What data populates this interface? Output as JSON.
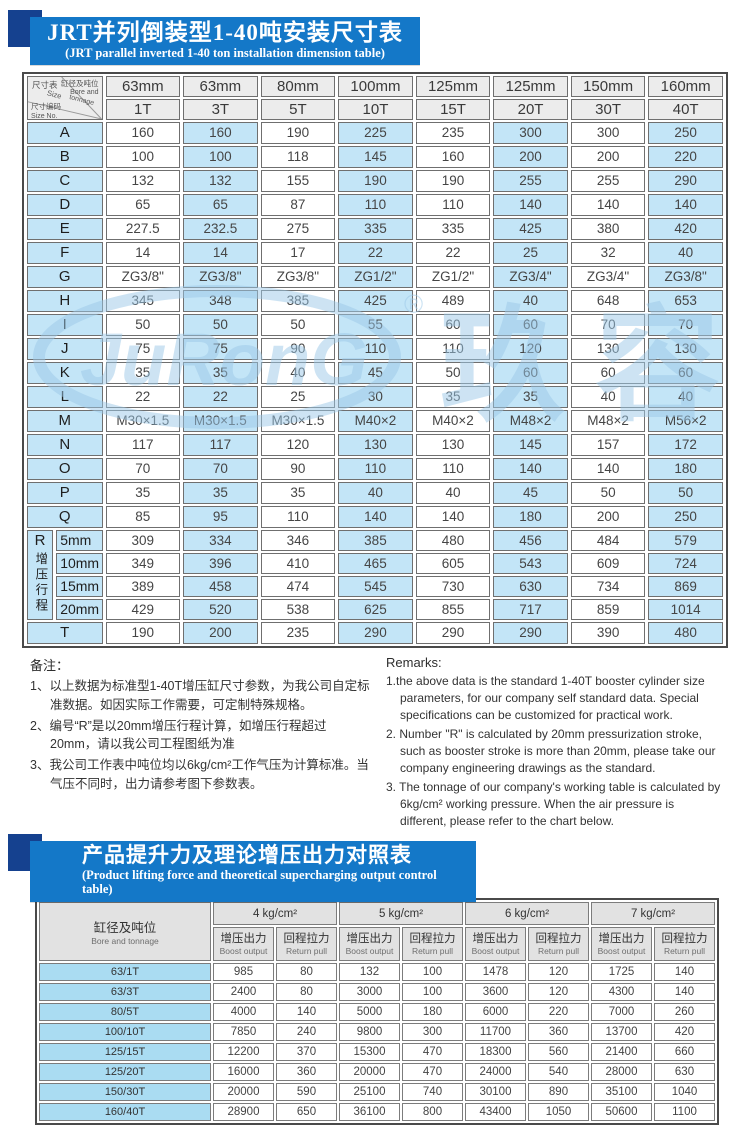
{
  "colors": {
    "banner_blue": "#1478c8",
    "dark_blue": "#15418f",
    "cell_blue": "#c3e5f7",
    "label_blue": "#aadcf2",
    "header_grey": "#ececec",
    "watermark_blue": "#9cc9e8"
  },
  "section1": {
    "title_cn": "JRT并列倒装型1-40吨安装尺寸表",
    "title_en": "(JRT parallel inverted 1-40 ton installation dimension table)",
    "corner": {
      "size_cn": "尺寸表",
      "size_en": "Size",
      "bore_cn": "缸径及吨位",
      "bore_en1": "Bore and",
      "bore_en2": "tonnage",
      "no_cn": "尺寸编码",
      "no_en": "Size No."
    },
    "bores": [
      "63mm",
      "63mm",
      "80mm",
      "100mm",
      "125mm",
      "125mm",
      "150mm",
      "160mm"
    ],
    "tons": [
      "1T",
      "3T",
      "5T",
      "10T",
      "15T",
      "20T",
      "30T",
      "40T"
    ],
    "rows": [
      {
        "label": "A",
        "values": [
          "160",
          "160",
          "190",
          "225",
          "235",
          "300",
          "300",
          "250"
        ]
      },
      {
        "label": "B",
        "values": [
          "100",
          "100",
          "118",
          "145",
          "160",
          "200",
          "200",
          "220"
        ]
      },
      {
        "label": "C",
        "values": [
          "132",
          "132",
          "155",
          "190",
          "190",
          "255",
          "255",
          "290"
        ]
      },
      {
        "label": "D",
        "values": [
          "65",
          "65",
          "87",
          "110",
          "110",
          "140",
          "140",
          "140"
        ]
      },
      {
        "label": "E",
        "values": [
          "227.5",
          "232.5",
          "275",
          "335",
          "335",
          "425",
          "380",
          "420"
        ]
      },
      {
        "label": "F",
        "values": [
          "14",
          "14",
          "17",
          "22",
          "22",
          "25",
          "32",
          "40"
        ]
      },
      {
        "label": "G",
        "values": [
          "ZG3/8\"",
          "ZG3/8\"",
          "ZG3/8\"",
          "ZG1/2\"",
          "ZG1/2\"",
          "ZG3/4\"",
          "ZG3/4\"",
          "ZG3/8\""
        ]
      },
      {
        "label": "H",
        "values": [
          "345",
          "348",
          "385",
          "425",
          "489",
          "40",
          "648",
          "653"
        ]
      },
      {
        "label": "I",
        "values": [
          "50",
          "50",
          "50",
          "55",
          "60",
          "60",
          "70",
          "70"
        ]
      },
      {
        "label": "J",
        "values": [
          "75",
          "75",
          "90",
          "110",
          "110",
          "120",
          "130",
          "130"
        ]
      },
      {
        "label": "K",
        "values": [
          "35",
          "35",
          "40",
          "45",
          "50",
          "60",
          "60",
          "60"
        ]
      },
      {
        "label": "L",
        "values": [
          "22",
          "22",
          "25",
          "30",
          "35",
          "35",
          "40",
          "40"
        ]
      },
      {
        "label": "M",
        "values": [
          "M30×1.5",
          "M30×1.5",
          "M30×1.5",
          "M40×2",
          "M40×2",
          "M48×2",
          "M48×2",
          "M56×2"
        ]
      },
      {
        "label": "N",
        "values": [
          "117",
          "117",
          "120",
          "130",
          "130",
          "145",
          "157",
          "172"
        ]
      },
      {
        "label": "O",
        "values": [
          "70",
          "70",
          "90",
          "110",
          "110",
          "140",
          "140",
          "180"
        ]
      },
      {
        "label": "P",
        "values": [
          "35",
          "35",
          "35",
          "40",
          "40",
          "45",
          "50",
          "50"
        ]
      },
      {
        "label": "Q",
        "values": [
          "85",
          "95",
          "110",
          "140",
          "140",
          "180",
          "200",
          "250"
        ]
      }
    ],
    "r_group": {
      "letter": "R",
      "vertical": "增压行程",
      "rows": [
        {
          "label": "5mm",
          "values": [
            "309",
            "334",
            "346",
            "385",
            "480",
            "456",
            "484",
            "579"
          ]
        },
        {
          "label": "10mm",
          "values": [
            "349",
            "396",
            "410",
            "465",
            "605",
            "543",
            "609",
            "724"
          ]
        },
        {
          "label": "15mm",
          "values": [
            "389",
            "458",
            "474",
            "545",
            "730",
            "630",
            "734",
            "869"
          ]
        },
        {
          "label": "20mm",
          "values": [
            "429",
            "520",
            "538",
            "625",
            "855",
            "717",
            "859",
            "1014"
          ]
        }
      ]
    },
    "t_row": {
      "label": "T",
      "values": [
        "190",
        "200",
        "235",
        "290",
        "290",
        "290",
        "390",
        "480"
      ]
    }
  },
  "watermark": {
    "logo": "JuRonG",
    "reg": "®",
    "cn": "玖容"
  },
  "notes": {
    "cn_title": "备注：",
    "cn_items": [
      "1、以上数据为标准型1-40T增压缸尺寸参数，为我公司自定标准数据。如因实际工作需要，可定制特殊规格。",
      "2、编号“R”是以20mm增压行程计算，如增压行程超过20mm，请以我公司工程图纸为准",
      "3、我公司工作表中吨位均以6kg/cm²工作气压为计算标准。当气压不同时，出力请参考图下参数表。"
    ],
    "en_title": "Remarks:",
    "en_items": [
      "1.the above data is the standard 1-40T booster cylinder size parameters, for our company self standard data. Special specifications can be customized for practical work.",
      "2. Number \"R\" is calculated by 20mm pressurization stroke, such as booster stroke is more than 20mm, please take our company engineering drawings as the standard.",
      "3. The tonnage of our company's working table is calculated by 6kg/cm² working pressure. When the air pressure is different, please refer to the chart below."
    ]
  },
  "section2": {
    "title_cn": "产品提升力及理论增压出力对照表",
    "title_en": "(Product lifting force and theoretical supercharging output control table)",
    "corner_cn": "缸径及吨位",
    "corner_en": "Bore and tonnage",
    "pressures": [
      "4 kg/cm²",
      "5 kg/cm²",
      "6 kg/cm²",
      "7 kg/cm²"
    ],
    "boost_cn": "增压出力",
    "boost_en": "Boost output",
    "return_cn": "回程拉力",
    "return_en": "Return pull",
    "rows": [
      {
        "label": "63/1T",
        "values": [
          985,
          80,
          132,
          100,
          1478,
          120,
          1725,
          140
        ]
      },
      {
        "label": "63/3T",
        "values": [
          2400,
          80,
          3000,
          100,
          3600,
          120,
          4300,
          140
        ]
      },
      {
        "label": "80/5T",
        "values": [
          4000,
          140,
          5000,
          180,
          6000,
          220,
          7000,
          260
        ]
      },
      {
        "label": "100/10T",
        "values": [
          7850,
          240,
          9800,
          300,
          11700,
          360,
          13700,
          420
        ]
      },
      {
        "label": "125/15T",
        "values": [
          12200,
          370,
          15300,
          470,
          18300,
          560,
          21400,
          660
        ]
      },
      {
        "label": "125/20T",
        "values": [
          16000,
          360,
          20000,
          470,
          24000,
          540,
          28000,
          630
        ]
      },
      {
        "label": "150/30T",
        "values": [
          20000,
          590,
          25100,
          740,
          30100,
          890,
          35100,
          1040
        ]
      },
      {
        "label": "160/40T",
        "values": [
          28900,
          650,
          36100,
          800,
          43400,
          1050,
          50600,
          1100
        ]
      }
    ]
  }
}
